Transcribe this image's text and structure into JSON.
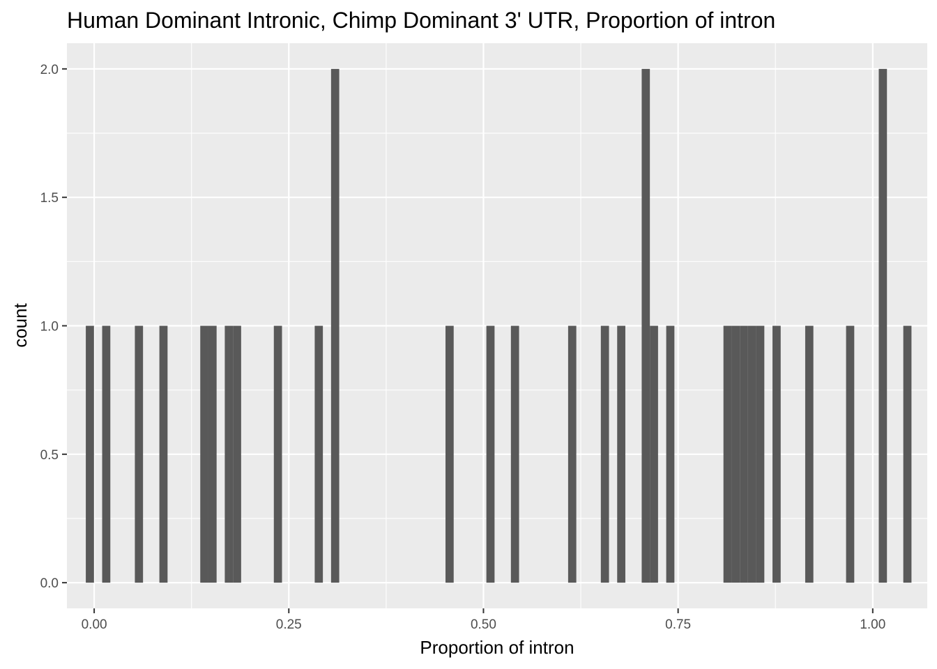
{
  "chart_data": {
    "type": "bar",
    "title": "Human Dominant Intronic, Chimp Dominant 3' UTR, Proportion of intron",
    "xlabel": "Proportion of intron",
    "ylabel": "count",
    "xlim": [
      -0.035,
      1.07
    ],
    "ylim": [
      -0.1,
      2.1
    ],
    "x_ticks": [
      0.0,
      0.25,
      0.5,
      0.75,
      1.0
    ],
    "x_tick_labels": [
      "0.00",
      "0.25",
      "0.50",
      "0.75",
      "1.00"
    ],
    "y_ticks": [
      0.0,
      0.5,
      1.0,
      1.5,
      2.0
    ],
    "y_tick_labels": [
      "0.0",
      "0.5",
      "1.0",
      "1.5",
      "2.0"
    ],
    "grid": true,
    "bin_width": 0.0105,
    "bins": [
      {
        "x": -0.0055,
        "count": 1
      },
      {
        "x": 0.0155,
        "count": 1
      },
      {
        "x": 0.0575,
        "count": 1
      },
      {
        "x": 0.089,
        "count": 1
      },
      {
        "x": 0.1415,
        "count": 1
      },
      {
        "x": 0.152,
        "count": 1
      },
      {
        "x": 0.173,
        "count": 1
      },
      {
        "x": 0.1835,
        "count": 1
      },
      {
        "x": 0.236,
        "count": 1
      },
      {
        "x": 0.2885,
        "count": 1
      },
      {
        "x": 0.3095,
        "count": 2
      },
      {
        "x": 0.4565,
        "count": 1
      },
      {
        "x": 0.509,
        "count": 1
      },
      {
        "x": 0.5405,
        "count": 1
      },
      {
        "x": 0.614,
        "count": 1
      },
      {
        "x": 0.656,
        "count": 1
      },
      {
        "x": 0.677,
        "count": 1
      },
      {
        "x": 0.7085,
        "count": 2
      },
      {
        "x": 0.719,
        "count": 1
      },
      {
        "x": 0.74,
        "count": 1
      },
      {
        "x": 0.8135,
        "count": 1
      },
      {
        "x": 0.824,
        "count": 1
      },
      {
        "x": 0.8345,
        "count": 1
      },
      {
        "x": 0.845,
        "count": 1
      },
      {
        "x": 0.8555,
        "count": 1
      },
      {
        "x": 0.8765,
        "count": 1
      },
      {
        "x": 0.9185,
        "count": 1
      },
      {
        "x": 0.971,
        "count": 1
      },
      {
        "x": 1.013,
        "count": 2
      },
      {
        "x": 1.0445,
        "count": 1
      }
    ],
    "colors": {
      "panel": "#ebebeb",
      "grid_major": "#ffffff",
      "bar": "#595959",
      "tick": "#333333"
    }
  }
}
